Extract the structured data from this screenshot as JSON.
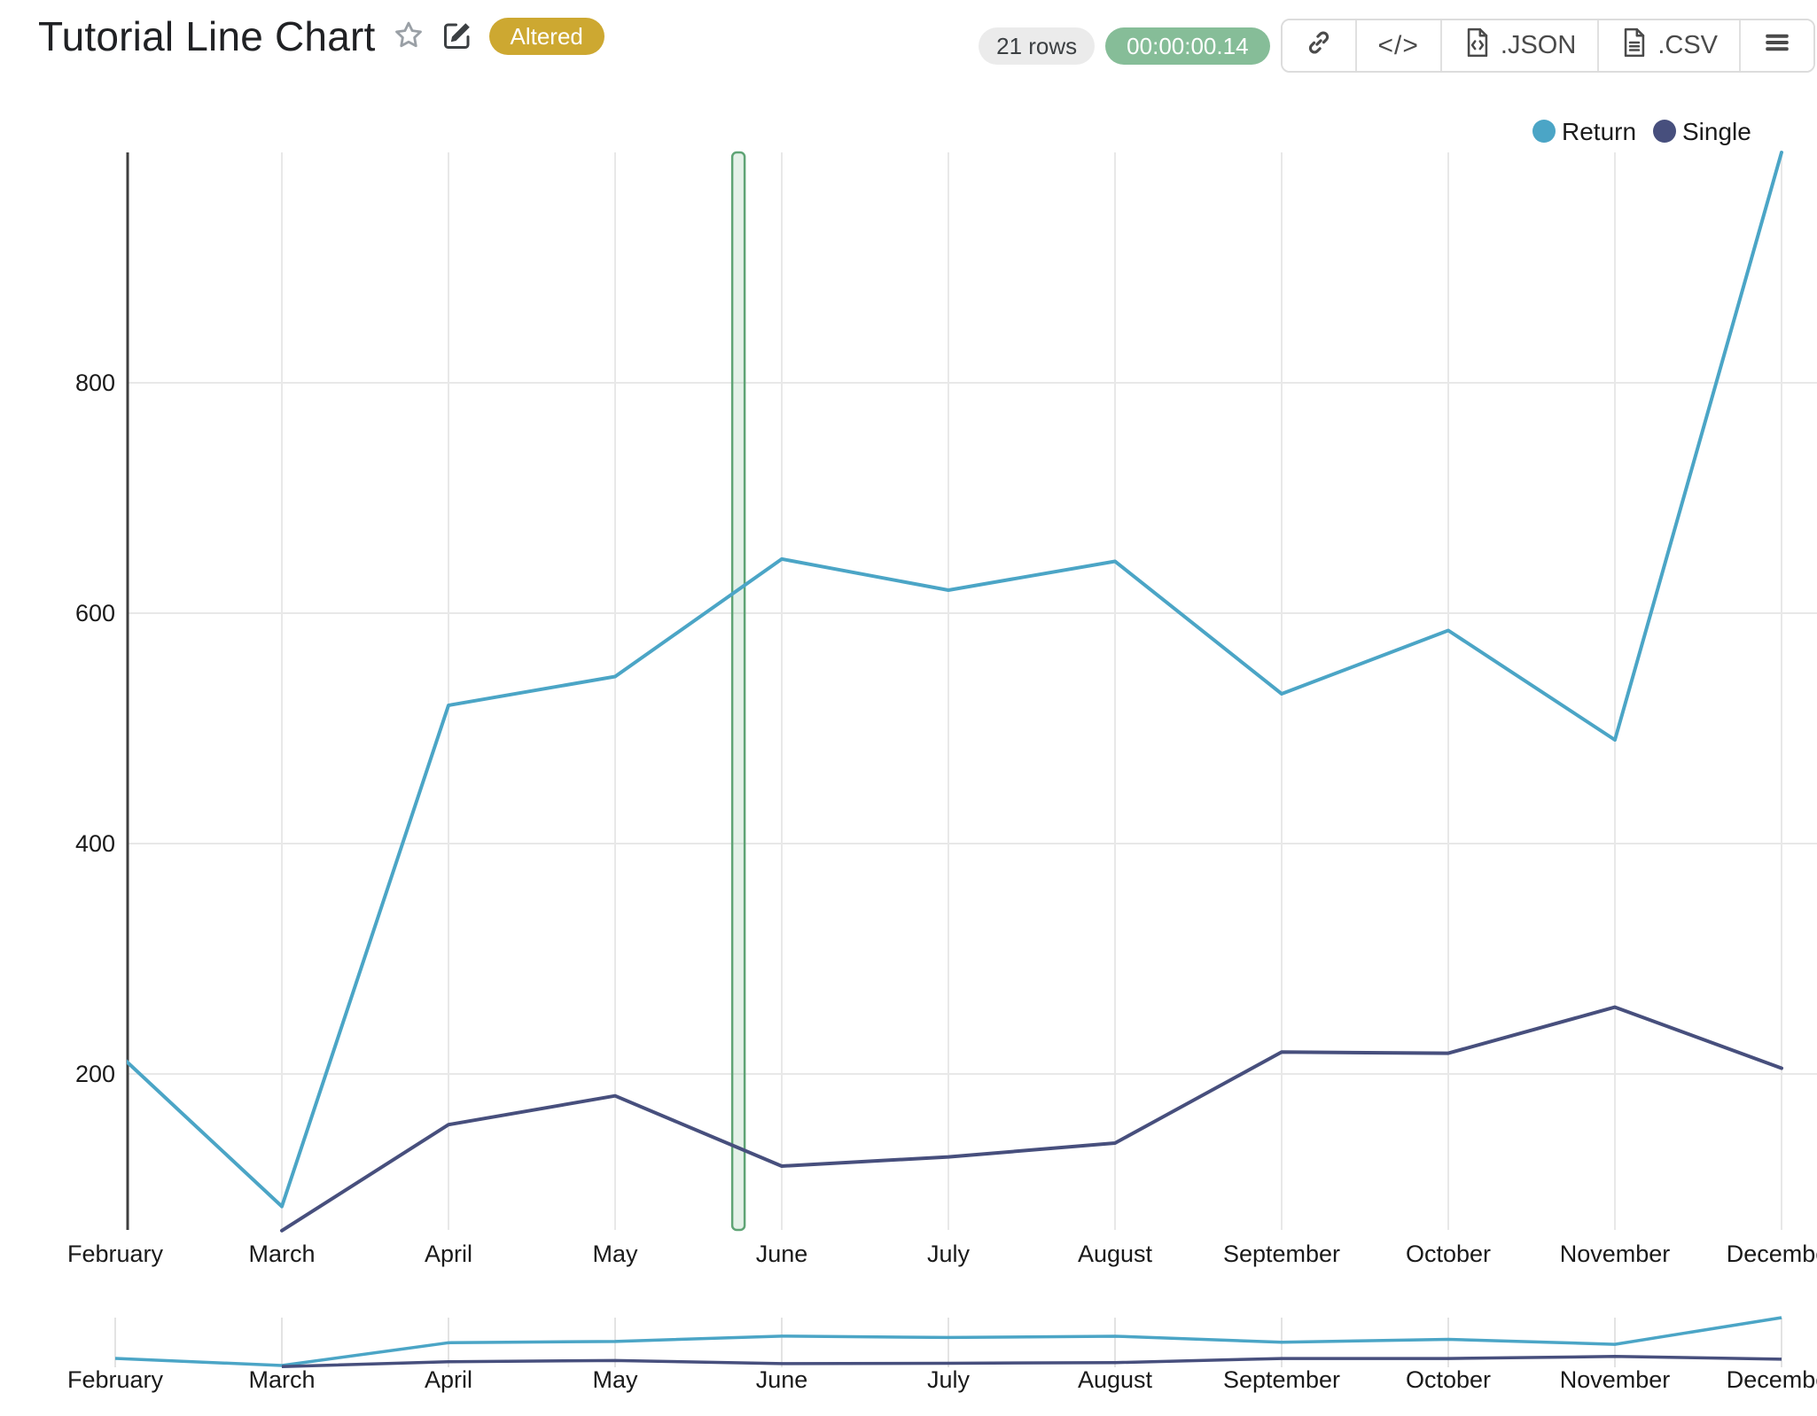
{
  "header": {
    "title": "Tutorial Line Chart",
    "altered_badge": "Altered",
    "rows_badge": "21 rows",
    "timer_badge": "00:00:00.14",
    "code_glyph": "</>",
    "json_label": ".JSON",
    "csv_label": ".CSV"
  },
  "chart_data": {
    "type": "line",
    "title": "Tutorial Line Chart",
    "categories": [
      "February",
      "March",
      "April",
      "May",
      "June",
      "July",
      "August",
      "September",
      "October",
      "November",
      "December"
    ],
    "series": [
      {
        "name": "Return",
        "color": "#4BA5C6",
        "values": [
          220,
          85,
          520,
          545,
          647,
          620,
          645,
          530,
          585,
          490,
          1000
        ]
      },
      {
        "name": "Single",
        "color": "#474F7D",
        "values": [
          null,
          64,
          156,
          181,
          120,
          128,
          140,
          219,
          218,
          258,
          205
        ]
      }
    ],
    "y_ticks": [
      200,
      400,
      600,
      800
    ],
    "y_visible_range": [
      64,
      1000
    ],
    "grid": true,
    "legend_position": "top-right",
    "highlight_band": {
      "between": [
        "May",
        "June"
      ],
      "position_fraction": 0.74,
      "stroke": "#5FA475",
      "fill": "#86BD98"
    },
    "range_minimap": true,
    "colors": {
      "grid": "#e8e8e8",
      "axis": "#3f3f3f",
      "tick_text": "#1a1a1a"
    }
  }
}
